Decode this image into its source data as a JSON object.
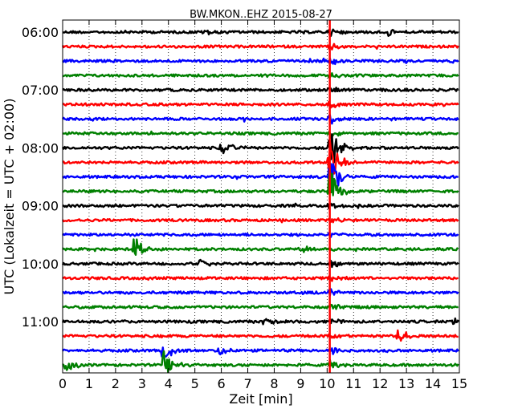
{
  "chart_data": {
    "type": "line",
    "title": "BW.MKON..EHZ 2015-08-27",
    "xlabel": "Zeit  [min]",
    "ylabel": "UTC (Lokalzeit = UTC + 02:00)",
    "xlim": [
      0,
      15
    ],
    "x_ticks": [
      "0",
      "1",
      "2",
      "3",
      "4",
      "5",
      "6",
      "7",
      "8",
      "9",
      "10",
      "11",
      "12",
      "13",
      "14",
      "15"
    ],
    "y_ticks": [
      "06:00",
      "07:00",
      "08:00",
      "09:00",
      "10:00",
      "11:00"
    ],
    "grid": {
      "x": true,
      "style": "dotted"
    },
    "colors": [
      "#000000",
      "#ff0000",
      "#0000ff",
      "#008000"
    ],
    "row_start": "06:00",
    "row_step_minutes": 15,
    "rows": 24,
    "events": [
      {
        "x": 10.1,
        "rows_from": 0,
        "rows_to": 23,
        "amp": 6
      },
      {
        "x": 10.1,
        "rows_from": 8,
        "rows_to": 11,
        "amp": 30
      },
      {
        "x": 2.7,
        "rows_from": 15,
        "rows_to": 15,
        "amp": 18
      },
      {
        "x": 3.8,
        "rows_from": 22,
        "rows_to": 23,
        "amp": 20
      },
      {
        "x": 6.0,
        "rows_from": 8,
        "rows_to": 8,
        "amp": 9
      },
      {
        "x": 6.3,
        "rows_from": 8,
        "rows_to": 8,
        "amp": 8
      },
      {
        "x": 12.7,
        "rows_from": 21,
        "rows_to": 21,
        "amp": 11
      },
      {
        "x": 14.8,
        "rows_from": 20,
        "rows_to": 20,
        "amp": 9
      },
      {
        "x": 5.3,
        "rows_from": 0,
        "rows_to": 0,
        "amp": 6
      },
      {
        "x": 5.2,
        "rows_from": 16,
        "rows_to": 16,
        "amp": 5
      },
      {
        "x": 7.6,
        "rows_from": 20,
        "rows_to": 20,
        "amp": 5
      },
      {
        "x": 5.9,
        "rows_from": 22,
        "rows_to": 22,
        "amp": 6
      },
      {
        "x": 0.1,
        "rows_from": 23,
        "rows_to": 23,
        "amp": 10
      },
      {
        "x": 9.0,
        "rows_from": 15,
        "rows_to": 15,
        "amp": 5
      },
      {
        "x": 12.3,
        "rows_from": 0,
        "rows_to": 0,
        "amp": 5
      }
    ]
  }
}
